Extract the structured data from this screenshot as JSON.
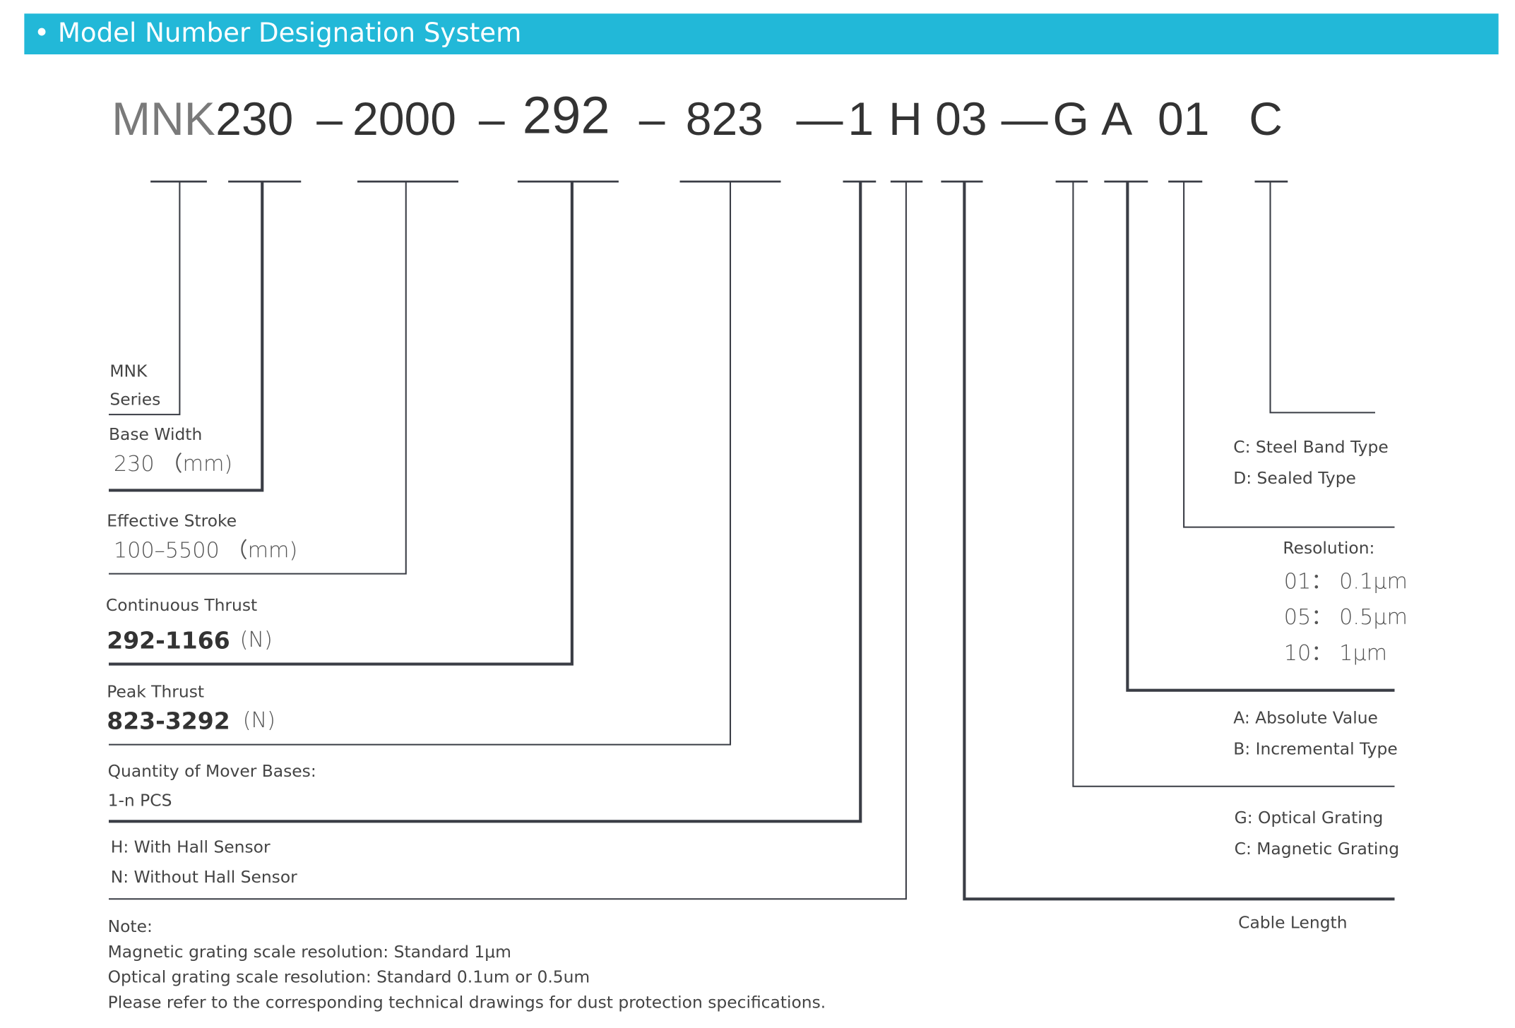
{
  "header": {
    "title": "• Model Number Designation System",
    "color": "#22b8d8"
  },
  "model": {
    "series": "MNK",
    "width": "230",
    "dash1": "–",
    "stroke": "2000",
    "dash2": "–",
    "cont": "292",
    "dash3": "–",
    "peak": "823",
    "dash4": "—",
    "qty": "1",
    "hall": "H",
    "cable": "03",
    "dash5": "—",
    "grating": "G",
    "type": "A",
    "res": "01",
    "seal": "C"
  },
  "left": {
    "series": [
      "MNK",
      "Series"
    ],
    "base_width": {
      "label": "Base Width",
      "value": "230 （mm)"
    },
    "stroke": {
      "label": "Effective Stroke",
      "value": "100–5500 （mm)"
    },
    "cont_thrust": {
      "label": "Continuous Thrust",
      "value": "292-1166",
      "unit": "(N)"
    },
    "peak_thrust": {
      "label": "Peak Thrust",
      "value": "823-3292",
      "unit": "(N)"
    },
    "qty": {
      "label": "Quantity of Mover Bases:",
      "value": "1-n PCS"
    },
    "hall": [
      "H: With Hall Sensor",
      "N: Without Hall Sensor"
    ]
  },
  "right": {
    "seal": [
      "C: Steel Band Type",
      "D: Sealed Type"
    ],
    "resolution": {
      "label": "Resolution:",
      "items": [
        "01：  0.1μm",
        "05：  0.5μm",
        "10：  1μm"
      ]
    },
    "encoder": [
      "A: Absolute Value",
      "B: Incremental Type"
    ],
    "grating": [
      "G: Optical Grating",
      "C: Magnetic Grating"
    ],
    "cable": "Cable Length"
  },
  "note": [
    "Note:",
    "Magnetic grating scale resolution: Standard 1μm",
    "Optical grating scale resolution: Standard 0.1um or 0.5um",
    "Please refer to the corresponding technical drawings for dust protection specifications."
  ]
}
